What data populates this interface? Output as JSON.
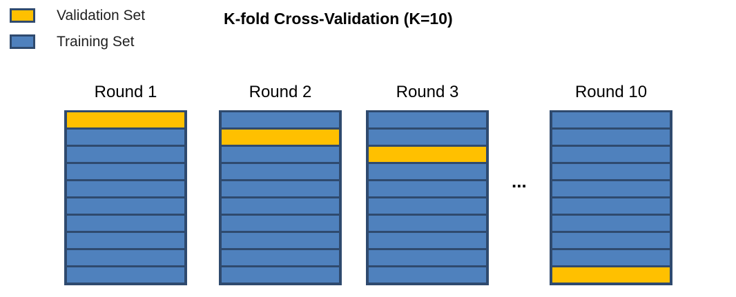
{
  "title": "K-fold Cross-Validation (K=10)",
  "legend": [
    {
      "label": "Validation Set",
      "color": "#ffc000"
    },
    {
      "label": "Training Set",
      "color": "#4f81bd"
    }
  ],
  "colors": {
    "validation": "#ffc000",
    "training": "#4f81bd",
    "border": "#2f4a6e"
  },
  "fold_count": 10,
  "rounds": [
    {
      "label": "Round 1",
      "validation_fold": 1
    },
    {
      "label": "Round 2",
      "validation_fold": 2
    },
    {
      "label": "Round 3",
      "validation_fold": 3
    },
    {
      "label": "Round 10",
      "validation_fold": 10
    }
  ],
  "ellipsis": "..."
}
